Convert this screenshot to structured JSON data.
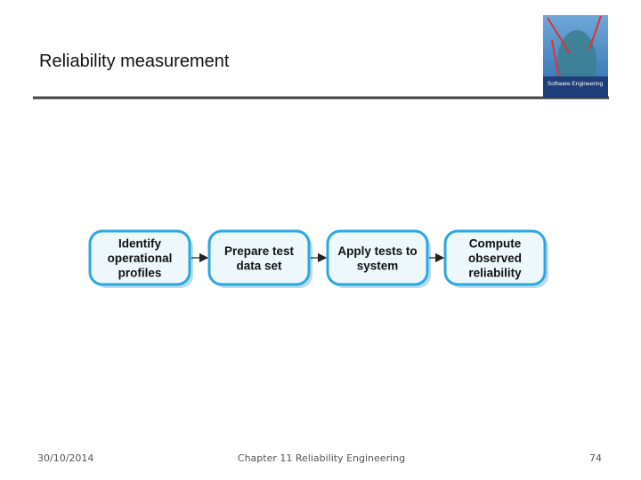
{
  "header": {
    "title": "Reliability measurement",
    "cover_title": "Software Engineering"
  },
  "nodes": [
    {
      "lines": [
        "Identify",
        "operational",
        "profiles"
      ]
    },
    {
      "lines": [
        "Prepare test",
        "data set"
      ]
    },
    {
      "lines": [
        "Apply tests to",
        "system"
      ]
    },
    {
      "lines": [
        "Compute",
        "observed",
        "reliability"
      ]
    }
  ],
  "footer": {
    "date": "30/10/2014",
    "chapter": "Chapter 11 Reliability Engineering",
    "page": "74"
  }
}
